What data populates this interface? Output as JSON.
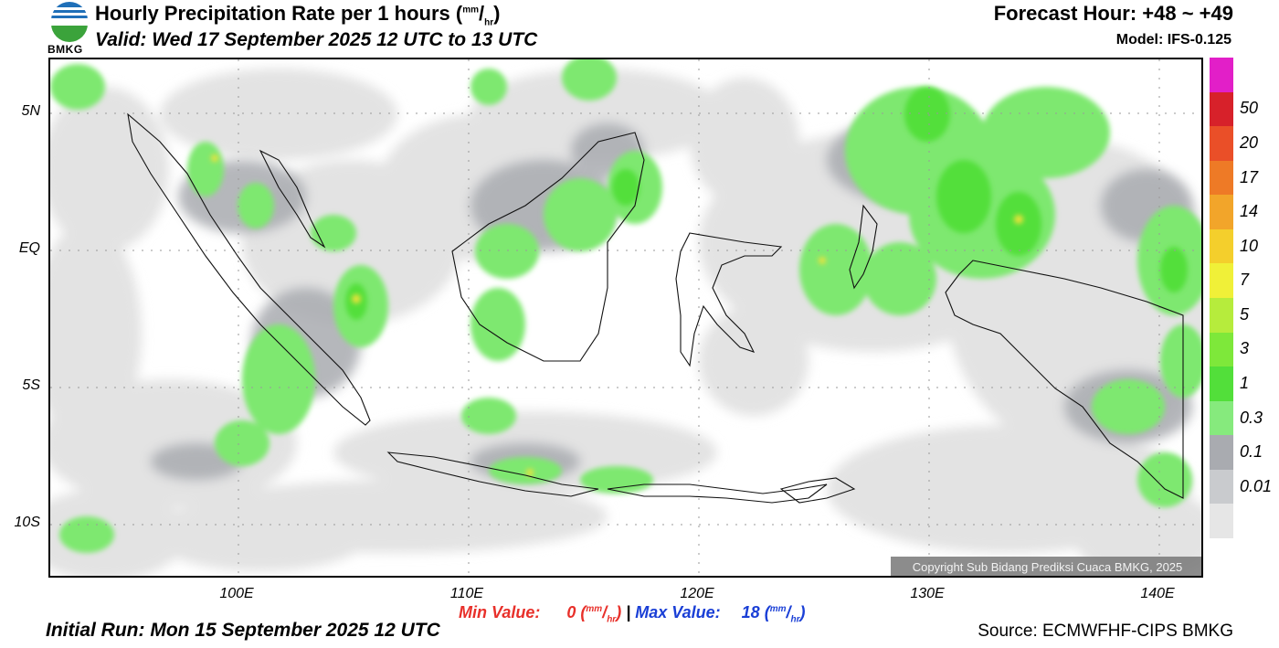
{
  "header": {
    "title_main": "Hourly Precipitation Rate per 1 hours (",
    "title_unit_top": "mm",
    "title_unit_slash": "/",
    "title_unit_bottom": "hr",
    "title_end": ")",
    "valid": "Valid: Wed 17 September 2025 12 UTC to 13 UTC",
    "forecast_hour": "Forecast Hour: +48 ~ +49",
    "model": "Model: IFS-0.125"
  },
  "logo": {
    "text": "BMKG",
    "icon": "bmkg-logo-icon"
  },
  "map": {
    "lat_labels": [
      "5N",
      "EQ",
      "5S",
      "10S"
    ],
    "lon_labels": [
      "100E",
      "110E",
      "120E",
      "130E",
      "140E"
    ],
    "copyright": "Copyright Sub Bidang Prediksi Cuaca BMKG, 2025"
  },
  "colorbar": {
    "labels": [
      "50",
      "20",
      "17",
      "14",
      "10",
      "7",
      "5",
      "3",
      "1",
      "0.3",
      "0.1",
      "0.01"
    ],
    "colors": [
      "#e21fc8",
      "#d7212a",
      "#ea4f28",
      "#ee7a26",
      "#f2a52a",
      "#f4cf2c",
      "#f0f038",
      "#b6ec3c",
      "#7ee83a",
      "#52df3a",
      "#86ea7d",
      "#a9abb0",
      "#c9cbce",
      "#e6e6e6"
    ]
  },
  "footer": {
    "min_label": "Min Value:",
    "min_value": "0",
    "separator": "|",
    "max_label": "Max Value:",
    "max_value": "18",
    "unit_top": "mm",
    "unit_slash": "/",
    "unit_bottom": "hr",
    "initial_run": "Initial Run: Mon 15 September 2025 12 UTC",
    "source": "Source: ECMWFHF-CIPS BMKG"
  }
}
